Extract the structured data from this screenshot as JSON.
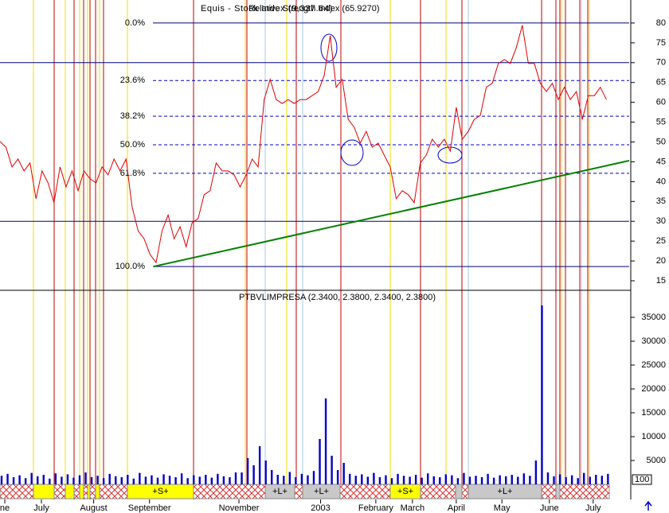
{
  "chart_data": [
    {
      "type": "line",
      "title": "Equis - Stock Index (9,337.64)",
      "subtitle": "Relative Strength Index (65.9270)",
      "series": [
        {
          "name": "Relative Strength Index",
          "color": "#e00000",
          "values": [
            50.1,
            48.7,
            43.7,
            45.7,
            42.7,
            44.7,
            35.7,
            42.7,
            39.7,
            34.7,
            43.7,
            38.7,
            42.7,
            37.7,
            42.7,
            40.7,
            39.7,
            43.7,
            41.7,
            45.7,
            42.7,
            45.7,
            33.7,
            27.6,
            25.6,
            21.6,
            19.6,
            27.6,
            31.6,
            25.6,
            28.6,
            23.6,
            29.6,
            30.7,
            36.7,
            37.7,
            44.7,
            42.7,
            42.7,
            41.7,
            38.7,
            41.7,
            45.7,
            43.7,
            60.7,
            65.8,
            60.7,
            59.7,
            60.7,
            59.7,
            60.7,
            60.7,
            61.7,
            62.7,
            66.8,
            76.8,
            63.8,
            65.8,
            55.7,
            53.7,
            49.7,
            52.7,
            48.7,
            49.7,
            46.7,
            43.7,
            35.7,
            37.7,
            36.7,
            34.7,
            44.7,
            46.7,
            50.7,
            48.7,
            50.7,
            47.7,
            58.7,
            50.7,
            52.7,
            55.7,
            56.7,
            63.8,
            64.8,
            69.8,
            70.8,
            69.8,
            73.8,
            79.4,
            69.8,
            69.8,
            64.8,
            62.7,
            64.8,
            60.7,
            63.8,
            60.7,
            62.7,
            55.7,
            61.7,
            61.7,
            63.8,
            60.7
          ]
        }
      ],
      "trendline": {
        "color": "#008000",
        "x": [
          25.6,
          104.8
        ],
        "values": [
          18.6,
          45.3
        ]
      },
      "fib_levels": [
        {
          "value": 80,
          "label": "0.0%"
        },
        {
          "value": 65.5,
          "label": "23.6%"
        },
        {
          "value": 56.5,
          "label": "38.2%"
        },
        {
          "value": 49.3,
          "label": "50.0%"
        },
        {
          "value": 42.1,
          "label": "61.8%"
        },
        {
          "value": 18.6,
          "label": "100.0%"
        }
      ],
      "bands": [
        70,
        30
      ],
      "xlim": [
        0,
        104.8
      ],
      "ylim": [
        12.6,
        85.4
      ],
      "yticks": [
        15,
        20,
        25,
        30,
        35,
        40,
        45,
        50,
        55,
        60,
        65,
        70,
        75,
        80
      ],
      "xticks": [
        {
          "value": 0.8,
          "label": "ne"
        },
        {
          "value": 6.9,
          "label": "July"
        },
        {
          "value": 15.6,
          "label": "August"
        },
        {
          "value": 24.9,
          "label": "September"
        },
        {
          "value": 39.8,
          "label": "November"
        },
        {
          "value": 53.4,
          "label": "2003"
        },
        {
          "value": 62.6,
          "label": "February"
        },
        {
          "value": 68.7,
          "label": "March"
        },
        {
          "value": 76,
          "label": "April"
        },
        {
          "value": 83.6,
          "label": "May"
        },
        {
          "value": 91.5,
          "label": "June"
        },
        {
          "value": 98.8,
          "label": "July"
        }
      ]
    },
    {
      "type": "bar",
      "title": "PTBVLIMPRESA (2.3400, 2.3800, 2.3400, 2.3800)",
      "series": [
        {
          "name": "PTBVLIMPRESA",
          "color": "#0000cc",
          "values": [
            1800,
            2200,
            1500,
            1900,
            1300,
            2400,
            1700,
            2000,
            1200,
            2300,
            1600,
            2100,
            1400,
            1900,
            2500,
            1500,
            1800,
            1300,
            2200,
            1700,
            1500,
            2000,
            1200,
            2400,
            1600,
            1900,
            1400,
            2100,
            1800,
            1500,
            2300,
            1300,
            1900,
            1600,
            2000,
            1400,
            2200,
            1700,
            1500,
            2500,
            2500,
            5500,
            4000,
            8000,
            5000,
            3000,
            2000,
            1800,
            2600,
            1500,
            2200,
            1900,
            2800,
            9500,
            18000,
            6000,
            3000,
            4500,
            2200,
            1800,
            2100,
            1600,
            2400,
            1500,
            1900,
            1300,
            2200,
            1800,
            1600,
            2000,
            1400,
            2300,
            1700,
            1500,
            2100,
            1900,
            1300,
            2400,
            1600,
            1800,
            1500,
            2200,
            1400,
            1900,
            1700,
            2000,
            1600,
            2300,
            1800,
            5000,
            37500,
            2500,
            1700,
            2100,
            1500,
            1900,
            1300,
            2400,
            1600,
            2000,
            1800,
            2200
          ]
        }
      ],
      "band_labels": [
        "+S+",
        "+L+",
        "+L+",
        "+S+",
        "+L+"
      ],
      "scale_label": "100",
      "xlim": [
        0,
        104.8
      ],
      "ylim": [
        0,
        40500
      ],
      "yticks": [
        5000,
        10000,
        15000,
        20000,
        25000,
        30000,
        35000
      ]
    }
  ]
}
